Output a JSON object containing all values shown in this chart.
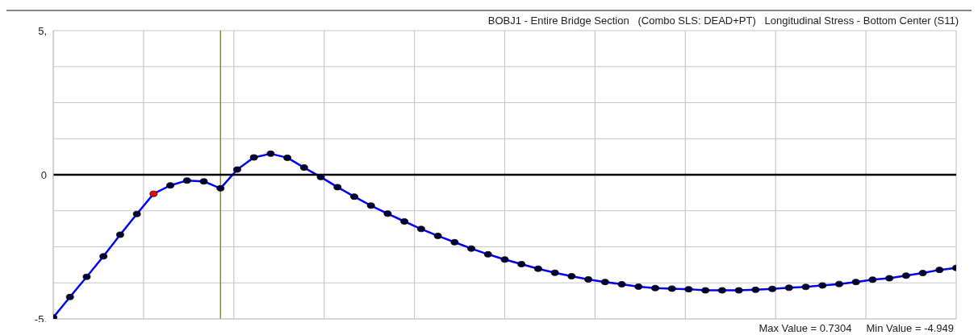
{
  "chart_data": {
    "type": "line",
    "title": "BOBJ1 - Entire Bridge Section   (Combo SLS: DEAD+PT)   Longitudinal Stress - Bottom Center (S11)",
    "categories": [
      null,
      null,
      null,
      null,
      null,
      null,
      null,
      null,
      null,
      null,
      null,
      null,
      null,
      null,
      null,
      null,
      null,
      null,
      null,
      null,
      null,
      null,
      null,
      null,
      null,
      null,
      null,
      null,
      null,
      null,
      null,
      null,
      null,
      null,
      null,
      null,
      null,
      null,
      null,
      null,
      null,
      null,
      null,
      null,
      null,
      null,
      null,
      null,
      null,
      null,
      null,
      null,
      null,
      null,
      null
    ],
    "series": [
      {
        "color": "#0000ff",
        "values": [
          -4.95,
          -4.24,
          -3.54,
          -2.83,
          -2.08,
          -1.36,
          -0.66,
          -0.37,
          -0.2,
          -0.23,
          -0.47,
          0.18,
          0.6,
          0.73,
          0.59,
          0.25,
          -0.08,
          -0.43,
          -0.76,
          -1.07,
          -1.35,
          -1.62,
          -1.88,
          -2.12,
          -2.34,
          -2.56,
          -2.76,
          -2.94,
          -3.1,
          -3.26,
          -3.4,
          -3.52,
          -3.63,
          -3.72,
          -3.8,
          -3.88,
          -3.93,
          -3.95,
          -3.97,
          -4.01,
          -4.01,
          -4.01,
          -3.99,
          -3.96,
          -3.92,
          -3.89,
          -3.84,
          -3.79,
          -3.72,
          -3.64,
          -3.59,
          -3.5,
          -3.41,
          -3.3,
          -3.23
        ],
        "colors": [
          "#000033",
          "#000033",
          "#000033",
          "#000033",
          "#000033",
          "#000033",
          "#ff0000",
          "#000033",
          "#000033",
          "#000033",
          "#000033",
          "#000033",
          "#000033",
          "#000033",
          "#000033",
          "#000033",
          "#000033",
          "#000033",
          "#000033",
          "#000033",
          "#000033",
          "#000033",
          "#000033",
          "#000033",
          "#000033",
          "#000033",
          "#000033",
          "#000033",
          "#000033",
          "#000033",
          "#000033",
          "#000033",
          "#000033",
          "#000033",
          "#000033",
          "#000033",
          "#000033",
          "#000033",
          "#000033",
          "#000033",
          "#000033",
          "#000033",
          "#000033",
          "#000033",
          "#000033",
          "#000033",
          "#000033",
          "#000033",
          "#000033",
          "#000033",
          "#000033",
          "#000033",
          "#000033",
          "#000033",
          "#000033"
        ]
      }
    ],
    "ylim": [
      -5,
      5
    ],
    "yticks": [
      {
        "value": -5,
        "label": "-5."
      },
      {
        "value": -3.75,
        "label": null
      },
      {
        "value": -2.5,
        "label": null
      },
      {
        "value": -1.25,
        "label": null
      },
      0,
      {
        "value": 1.25,
        "label": null
      },
      {
        "value": 2.5,
        "label": null
      },
      {
        "value": 3.75,
        "label": null
      },
      {
        "value": 5,
        "label": "5,"
      }
    ],
    "tick_labels": "y",
    "grid": true,
    "marker": "circle",
    "line_style": "solid",
    "ref_lines": [
      {
        "axis": "y",
        "value": 0,
        "color": "#000000"
      }
    ],
    "annotations": [
      "Max Value = 0.7304",
      "Min Value = -4.949"
    ]
  }
}
